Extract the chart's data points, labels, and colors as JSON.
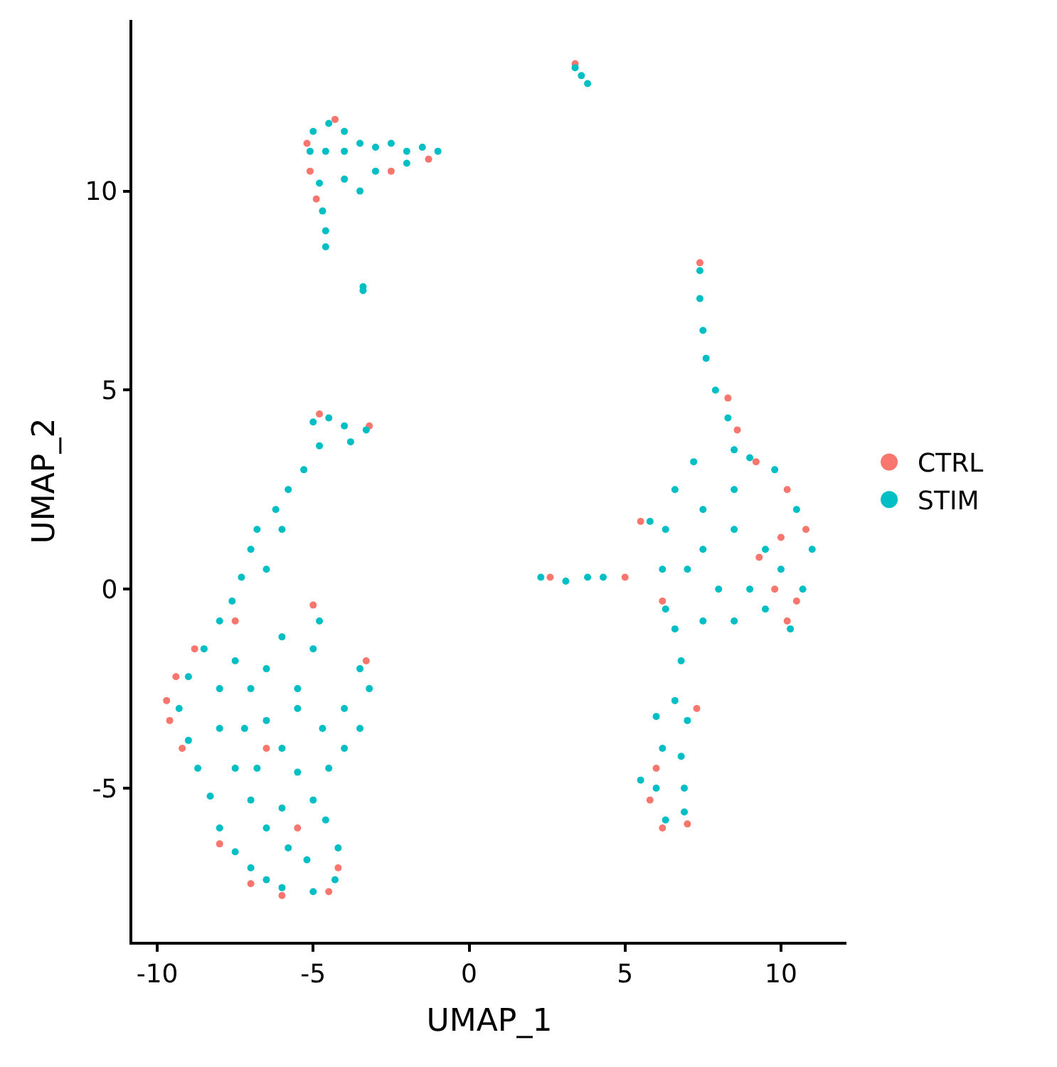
{
  "chart_data": {
    "type": "scatter",
    "xlabel": "UMAP_1",
    "ylabel": "UMAP_2",
    "xlim": [
      -10.8,
      12.1
    ],
    "ylim": [
      -8.86,
      14.3
    ],
    "xticks": [
      -10,
      -5,
      0,
      5,
      10
    ],
    "yticks": [
      -5,
      0,
      5,
      10
    ],
    "legend": "right",
    "marker": "circle",
    "series": [
      {
        "name": "CTRL",
        "color": "#f8766d",
        "x": [
          -5.2,
          -5.1,
          -4.9,
          -2.5,
          -1.3,
          -4.3,
          3.4,
          -9.7,
          -9.6,
          -9.4,
          -9.2,
          -8.8,
          -8,
          -7,
          -6,
          -4.5,
          -4.2,
          -5,
          -3.3,
          -4.8,
          -3.2,
          -7.5,
          -6.5,
          -5.5,
          2.6,
          5.0,
          7.4,
          8.3,
          8.6,
          9.2,
          10.2,
          10.8,
          10.5,
          10.2,
          9.8,
          9.3,
          10,
          5.5,
          6.2,
          6,
          6.2,
          5.8,
          7.3,
          7
        ],
        "values": [
          11.2,
          10.5,
          9.8,
          10.5,
          10.8,
          11.8,
          13.2,
          -2.8,
          -3.3,
          -2.2,
          -4,
          -1.5,
          -6.4,
          -7.4,
          -7.7,
          -7.6,
          -7,
          -0.4,
          -1.8,
          4.4,
          4.1,
          -0.8,
          -4,
          -6,
          0.3,
          0.3,
          8.2,
          4.8,
          4,
          3.2,
          2.5,
          1.5,
          -0.3,
          -0.8,
          0,
          0.8,
          1.3,
          1.7,
          -0.3,
          -4.5,
          -6.0,
          -5.3,
          -3,
          -5.9
        ]
      },
      {
        "name": "STIM",
        "color": "#00bfc4",
        "x": [
          -5,
          -4.5,
          -4,
          -5.1,
          -4.6,
          -4,
          -3.5,
          -3,
          -2.5,
          -2,
          -1.5,
          -1,
          -2,
          -3,
          -4,
          -4.8,
          -4.7,
          -4.6,
          -4.6,
          -3.5,
          -3.4,
          -3.4,
          3.4,
          3.6,
          3.8,
          -5,
          -4.5,
          -4,
          -3.3,
          -4.8,
          -3.8,
          -5.3,
          -5.8,
          -6.2,
          -6.8,
          -7,
          -7.3,
          -7.6,
          -8,
          -8.5,
          -9,
          -9.3,
          -9,
          -8.7,
          -8.3,
          -8,
          -7.5,
          -7,
          -6.5,
          -6,
          -5,
          -4.3,
          -4.2,
          -4.6,
          -5,
          -5.5,
          -6,
          -6.5,
          -7,
          -7.5,
          -8,
          -8,
          -7.5,
          -7,
          -6.5,
          -5.8,
          -5.2,
          -6,
          -6.8,
          -7.2,
          -6.5,
          -6,
          -5.5,
          -4.8,
          -5,
          -5.5,
          -4.5,
          -4,
          -3.5,
          -3.2,
          -3.5,
          -4,
          -4.7,
          -6.5,
          -6,
          2.3,
          3.1,
          3.8,
          4.3,
          7.4,
          7.4,
          7.5,
          7.6,
          7.9,
          8.3,
          8.5,
          7.2,
          6.6,
          6.3,
          6.2,
          6.3,
          6.6,
          7.5,
          8.5,
          9.5,
          10.3,
          10.7,
          11,
          10.5,
          9.8,
          9,
          7.5,
          8.5,
          9.5,
          7,
          8,
          9,
          10,
          7.5,
          8.5,
          6.8,
          6.6,
          6,
          7,
          6.2,
          6.8,
          6,
          6.9,
          6.3,
          6.9,
          5.5,
          5.8
        ],
        "values": [
          11.5,
          11.7,
          11.5,
          11,
          11,
          11,
          11.2,
          11.1,
          11.2,
          11,
          11.1,
          11,
          10.7,
          10.5,
          10.3,
          10.2,
          9.5,
          9,
          8.6,
          10,
          7.6,
          7.5,
          13.1,
          12.9,
          12.7,
          4.2,
          4.3,
          4.1,
          4,
          3.6,
          3.7,
          3,
          2.5,
          2,
          1.5,
          1,
          0.3,
          -0.3,
          -0.8,
          -1.5,
          -2.2,
          -3,
          -3.8,
          -4.5,
          -5.2,
          -6,
          -6.6,
          -7,
          -7.3,
          -7.5,
          -7.6,
          -7.3,
          -6.5,
          -5.8,
          -5.3,
          -4.6,
          -4,
          -3.3,
          -2.5,
          -1.8,
          -2.5,
          -3.5,
          -4.5,
          -5.3,
          -6,
          -6.5,
          -6.8,
          -5.5,
          -4.5,
          -3.5,
          -2,
          -1.2,
          -2.5,
          -0.8,
          -1.5,
          -3,
          -4.5,
          -4,
          -3.5,
          -2.5,
          -2,
          -3,
          -3.5,
          0.5,
          1.5,
          0.3,
          0.2,
          0.3,
          0.3,
          8.0,
          7.3,
          6.5,
          5.8,
          5,
          4.3,
          3.5,
          3.2,
          2.5,
          1.5,
          0.5,
          -0.5,
          -1,
          -0.8,
          -0.8,
          -0.5,
          -1,
          0,
          1,
          2,
          3,
          3.3,
          2,
          1.5,
          1,
          0.5,
          0,
          0,
          0.5,
          1,
          2.5,
          -1.8,
          -2.8,
          -3.2,
          -3.3,
          -4,
          -4.2,
          -5,
          -5,
          -5.8,
          -5.6,
          -4.8,
          1.7
        ]
      }
    ]
  }
}
